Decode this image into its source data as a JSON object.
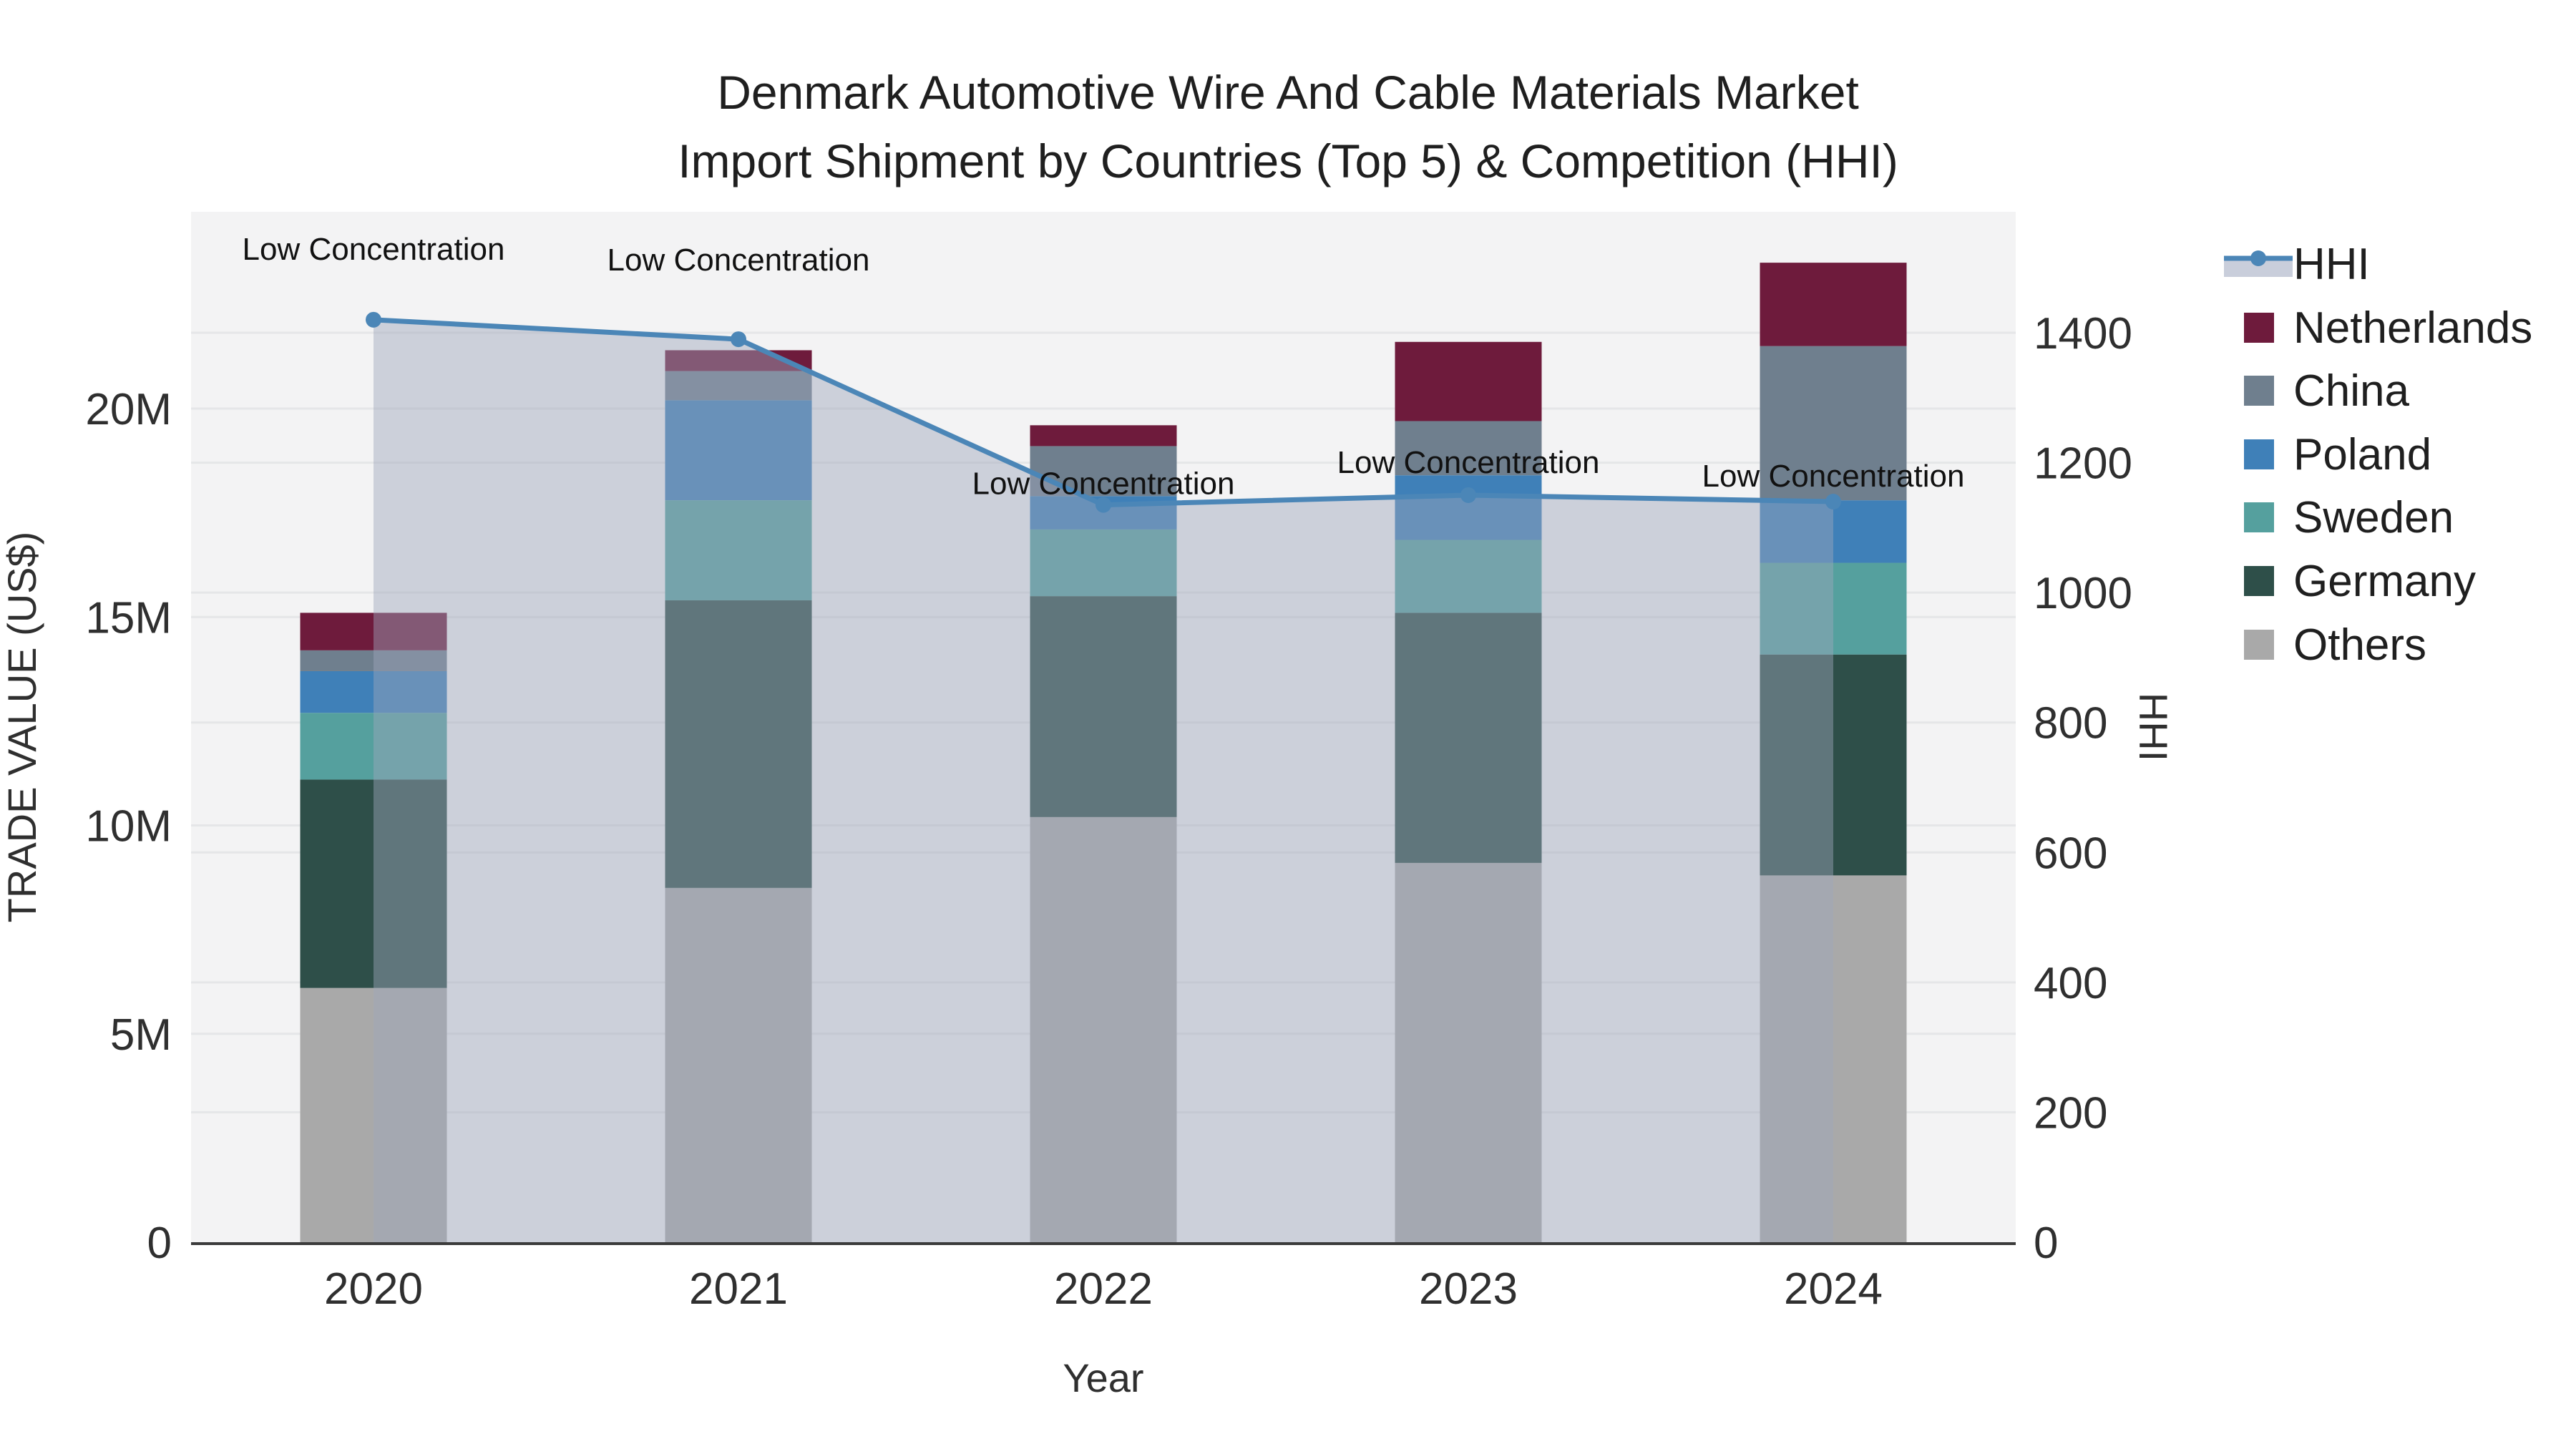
{
  "title": {
    "line1": "Denmark Automotive Wire And Cable Materials Market",
    "line2": "Import Shipment by Countries (Top 5) & Competition (HHI)"
  },
  "chart_data": {
    "type": "combo-stacked-bar-line",
    "categories": [
      "2020",
      "2021",
      "2022",
      "2023",
      "2024"
    ],
    "xlabel": "Year",
    "ylabel_left": "TRADE VALUE (US$)",
    "ylabel_right": "HHI",
    "y_left": {
      "tick_labels": [
        "0",
        "5M",
        "10M",
        "15M",
        "20M"
      ],
      "tick_values_m": [
        0,
        5,
        10,
        15,
        20
      ],
      "range_m": [
        0,
        24.7
      ],
      "grid": true
    },
    "y_right": {
      "tick_labels": [
        "0",
        "200",
        "400",
        "600",
        "800",
        "1000",
        "1200",
        "1400"
      ],
      "tick_values": [
        0,
        200,
        400,
        600,
        800,
        1000,
        1200,
        1400
      ],
      "range": [
        0,
        1586
      ],
      "grid": true
    },
    "bar_series": [
      {
        "name": "Others",
        "color": "#a9a9a9",
        "values_m": [
          6.1,
          8.5,
          10.2,
          9.1,
          8.8
        ]
      },
      {
        "name": "Germany",
        "color": "#2e4f49",
        "values_m": [
          5.0,
          6.9,
          5.3,
          6.0,
          5.3
        ]
      },
      {
        "name": "Sweden",
        "color": "#55a09e",
        "values_m": [
          1.6,
          2.4,
          1.6,
          1.75,
          2.2
        ]
      },
      {
        "name": "Poland",
        "color": "#3f80b8",
        "values_m": [
          1.0,
          2.4,
          0.8,
          1.55,
          1.5
        ]
      },
      {
        "name": "China",
        "color": "#6f7f8e",
        "values_m": [
          0.5,
          0.7,
          1.2,
          1.3,
          3.7
        ]
      },
      {
        "name": "Netherlands",
        "color": "#6e1b3c",
        "values_m": [
          0.9,
          0.5,
          0.5,
          1.9,
          2.0
        ]
      }
    ],
    "bar_totals_m": [
      15.1,
      21.4,
      19.6,
      21.6,
      23.5
    ],
    "line_series": {
      "name": "HHI",
      "color": "#4b86b7",
      "values": [
        1420,
        1390,
        1135,
        1150,
        1140
      ]
    },
    "area_fill_color": "rgba(158,166,186,0.45)",
    "annotations": [
      {
        "text": "Low Concentration",
        "category": "2020"
      },
      {
        "text": "Low Concentration",
        "category": "2021"
      },
      {
        "text": "Low Concentration",
        "category": "2022"
      },
      {
        "text": "Low Concentration",
        "category": "2023"
      },
      {
        "text": "Low Concentration",
        "category": "2024"
      }
    ],
    "legend": [
      {
        "label": "HHI",
        "type": "line",
        "color": "#4b86b7"
      },
      {
        "label": "Netherlands",
        "type": "swatch",
        "color": "#6e1b3c"
      },
      {
        "label": "China",
        "type": "swatch",
        "color": "#6f7f8e"
      },
      {
        "label": "Poland",
        "type": "swatch",
        "color": "#3f80b8"
      },
      {
        "label": "Sweden",
        "type": "swatch",
        "color": "#55a09e"
      },
      {
        "label": "Germany",
        "type": "swatch",
        "color": "#2e4f49"
      },
      {
        "label": "Others",
        "type": "swatch",
        "color": "#a9a9a9"
      }
    ],
    "plot_bg": "#f3f3f4",
    "grid_color": "rgba(110,115,130,0.10)",
    "axis_line_color": "#3b3b3b"
  }
}
